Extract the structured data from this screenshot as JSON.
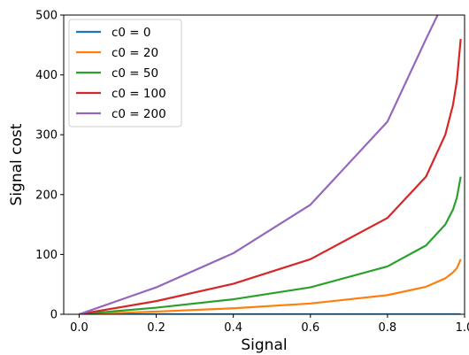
{
  "chart_data": {
    "type": "line",
    "title": "",
    "xlabel": "Signal",
    "ylabel": "Signal cost",
    "xlim": [
      -0.04,
      1.0
    ],
    "ylim": [
      0,
      500
    ],
    "x_ticks": [
      0.0,
      0.2,
      0.4,
      0.6,
      0.8,
      1.0
    ],
    "x_tick_labels": [
      "0.0",
      "0.2",
      "0.4",
      "0.6",
      "0.8",
      "1.0"
    ],
    "y_ticks": [
      0,
      100,
      200,
      300,
      400,
      500
    ],
    "y_tick_labels": [
      "0",
      "100",
      "200",
      "300",
      "400",
      "500"
    ],
    "grid": false,
    "legend_position": "top-left",
    "series": [
      {
        "name": "c0 = 0",
        "color": "#1f77b4",
        "x": [
          0.0,
          0.2,
          0.4,
          0.6,
          0.8,
          0.99
        ],
        "y": [
          0,
          0,
          0,
          0,
          0,
          0
        ]
      },
      {
        "name": "c0 = 20",
        "color": "#ff7f0e",
        "x": [
          0.0,
          0.2,
          0.4,
          0.6,
          0.8,
          0.9,
          0.95,
          0.97,
          0.98,
          0.99
        ],
        "y": [
          0,
          4.5,
          10,
          18,
          32,
          46,
          60,
          70,
          77,
          92
        ]
      },
      {
        "name": "c0 = 50",
        "color": "#2ca02c",
        "x": [
          0.0,
          0.2,
          0.4,
          0.6,
          0.8,
          0.9,
          0.95,
          0.97,
          0.98,
          0.99
        ],
        "y": [
          0,
          11,
          25,
          45,
          80,
          115,
          150,
          175,
          195,
          230
        ]
      },
      {
        "name": "c0 = 100",
        "color": "#d62728",
        "x": [
          0.0,
          0.2,
          0.4,
          0.6,
          0.8,
          0.9,
          0.95,
          0.97,
          0.98,
          0.99
        ],
        "y": [
          0,
          22,
          51,
          92,
          161,
          230,
          300,
          350,
          390,
          460
        ]
      },
      {
        "name": "c0 = 200",
        "color": "#9467bd",
        "x": [
          0.0,
          0.2,
          0.4,
          0.6,
          0.8,
          0.9,
          0.93
        ],
        "y": [
          0,
          45,
          102,
          183,
          322,
          460,
          500
        ]
      }
    ]
  }
}
